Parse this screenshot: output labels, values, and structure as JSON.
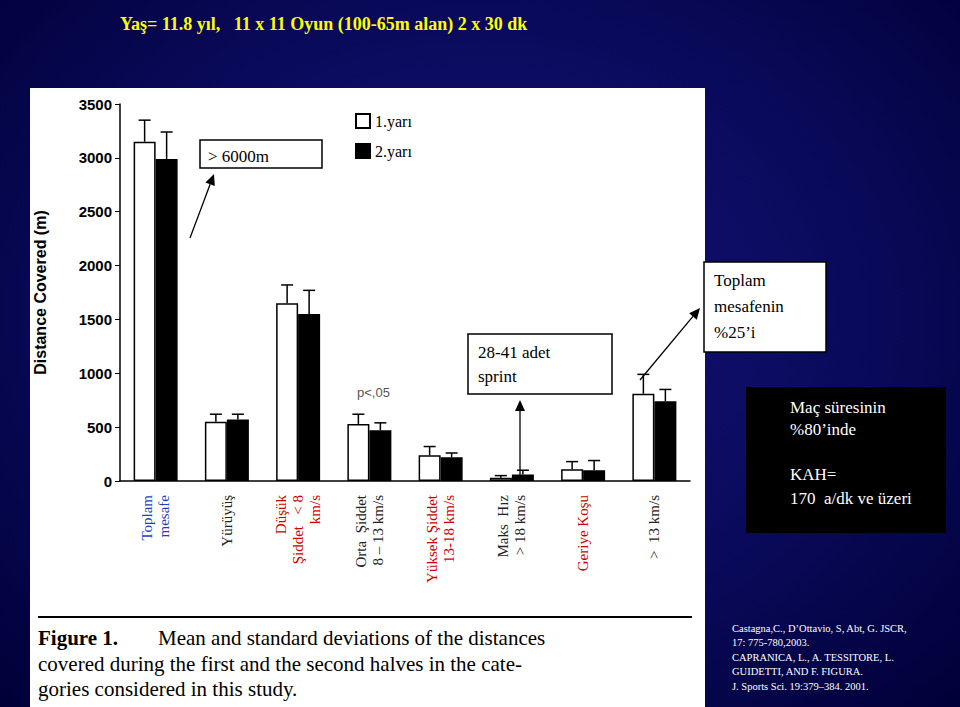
{
  "header": {
    "title": "Yaş= 11.8 yıl,   11 x 11 Oyun (100-65m alan) 2 x 30 dk"
  },
  "chart_data": {
    "type": "bar",
    "y_label": "Distance Covered (m)",
    "categories": [
      "Toplam\nmesafe",
      "Yürüyüş",
      "Düşük\nŞiddet   < 8\nkm/s",
      "Orta  Şiddet\n8 – 13 km/s",
      "Yüksek Şiddet\n13-18 km/s",
      "Maks  Hız\n> 18 km/s",
      "Geriye Koşu",
      ">  13 km/s"
    ],
    "series": [
      {
        "name": "1.yarı",
        "color": "#ffffff",
        "values": [
          3150,
          550,
          1650,
          530,
          240,
          30,
          110,
          810
        ],
        "errors": [
          200,
          70,
          170,
          90,
          80,
          20,
          70,
          180
        ]
      },
      {
        "name": "2.yarı",
        "color": "#000000",
        "values": [
          2990,
          570,
          1550,
          470,
          220,
          60,
          100,
          740
        ],
        "errors": [
          250,
          50,
          220,
          70,
          40,
          40,
          90,
          110
        ]
      }
    ],
    "ylim": [
      0,
      3500
    ],
    "yticks": [
      0,
      500,
      1000,
      1500,
      2000,
      2500,
      3000,
      3500
    ],
    "grid": false,
    "legend": "top"
  },
  "annotations": {
    "total": "> 6000m",
    "sprint": "28-41 adet\nsprint",
    "share": "Toplam\nmesafenin\n%25’i",
    "pvalue": "p<,05",
    "duration": "Maç süresinin\n%80’inde",
    "heart_rate": "KAH=\n170  a/dk ve üzeri"
  },
  "caption": {
    "label": "Figure 1.",
    "lines": [
      "Mean and standard deviations of the distances",
      "covered during the first and the second halves in the cate-",
      "gories considered in this study."
    ]
  },
  "references": [
    "Castagna,C., D’Ottavio, S, Abt, G. JSCR,",
    "17: 775-780,2003.",
    "CAPRANICA, L., A. TESSITORE, L.",
    "GUIDETTI, AND F. FIGURA.",
    "J. Sports Sci. 19:379–384. 2001."
  ]
}
